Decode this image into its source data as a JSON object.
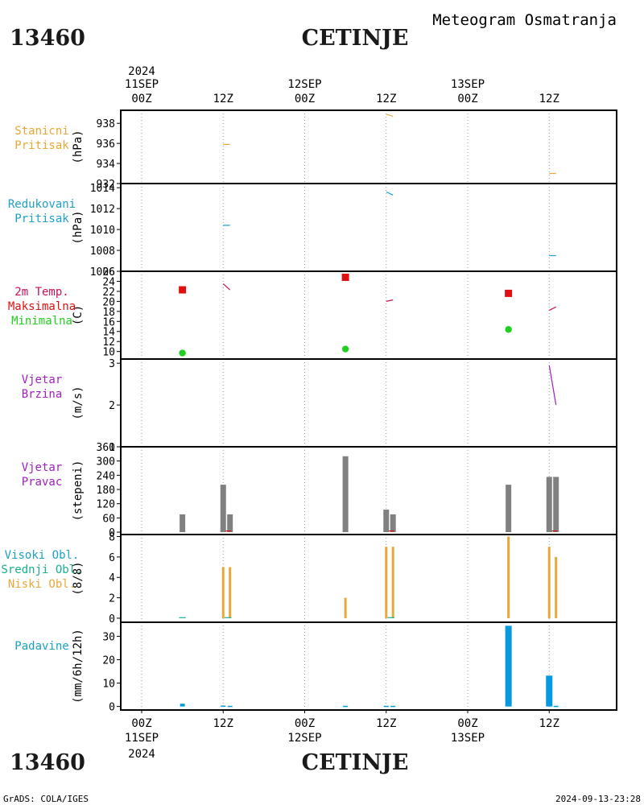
{
  "header": {
    "station_id": "13460",
    "station_name": "CETINJE",
    "product": "Meteogram Osmatranja"
  },
  "footer": {
    "station_id": "13460",
    "station_name": "CETINJE",
    "credit": "GrADS: COLA/IGES",
    "timestamp": "2024-09-13-23:28"
  },
  "time_axis": {
    "top_year": "2024",
    "ticks": [
      {
        "hour": 0,
        "label": "00Z",
        "date": "11SEP"
      },
      {
        "hour": 12,
        "label": "12Z",
        "date": ""
      },
      {
        "hour": 24,
        "label": "00Z",
        "date": "12SEP"
      },
      {
        "hour": 36,
        "label": "12Z",
        "date": ""
      },
      {
        "hour": 48,
        "label": "00Z",
        "date": "13SEP"
      },
      {
        "hour": 60,
        "label": "12Z",
        "date": ""
      }
    ],
    "bottom_year": "2024"
  },
  "colors": {
    "orange": "#e8a838",
    "cyan": "#1ea0c8",
    "crimson": "#c8105a",
    "red": "#e01010",
    "green": "#20d020",
    "purple": "#a020c0",
    "teal": "#18b090",
    "gray": "#808080",
    "blue": "#0898e0"
  },
  "chart_data": [
    {
      "id": "station-pressure",
      "type": "line",
      "labels": [
        {
          "text": "Stanicni",
          "color": "#e8a838"
        },
        {
          "text": "Pritisak",
          "color": "#e8a838"
        }
      ],
      "ylabel": "(hPa)",
      "ylim": [
        932,
        939.3
      ],
      "yticks": [
        932,
        934,
        936,
        938
      ],
      "series": [
        {
          "color": "#e8a838",
          "segments": [
            [
              [
                12,
                935.9
              ],
              [
                13,
                935.9
              ]
            ],
            [
              [
                36,
                938.9
              ],
              [
                37,
                938.7
              ]
            ],
            [
              [
                60,
                933.0
              ],
              [
                61,
                933.0
              ]
            ]
          ]
        }
      ]
    },
    {
      "id": "reduced-pressure",
      "type": "line",
      "labels": [
        {
          "text": "Redukovani",
          "color": "#1ea0c8"
        },
        {
          "text": "Pritisak",
          "color": "#1ea0c8"
        }
      ],
      "ylabel": "(hPa)",
      "ylim": [
        1006,
        1014.4
      ],
      "yticks": [
        1006,
        1008,
        1010,
        1012,
        1014
      ],
      "series": [
        {
          "color": "#1ea0c8",
          "segments": [
            [
              [
                12,
                1010.4
              ],
              [
                13,
                1010.4
              ]
            ],
            [
              [
                36,
                1013.6
              ],
              [
                37,
                1013.3
              ]
            ],
            [
              [
                60,
                1007.5
              ],
              [
                61,
                1007.5
              ]
            ]
          ]
        }
      ]
    },
    {
      "id": "temperature",
      "type": "scatter",
      "labels": [
        {
          "text": "2m Temp.",
          "color": "#c8105a"
        },
        {
          "text": "Maksimalna",
          "color": "#e01010"
        },
        {
          "text": "Minimalna",
          "color": "#20d020"
        }
      ],
      "ylabel": "(C)",
      "ylim": [
        8.5,
        26
      ],
      "yticks": [
        10,
        12,
        14,
        16,
        18,
        20,
        22,
        24,
        26
      ],
      "series": [
        {
          "color": "#c8105a",
          "segments": [
            [
              [
                12,
                23.5
              ],
              [
                13,
                22.3
              ]
            ],
            [
              [
                36,
                20.0
              ],
              [
                37,
                20.3
              ]
            ],
            [
              [
                60,
                18.2
              ],
              [
                61,
                18.9
              ]
            ]
          ]
        },
        {
          "color": "#e01010",
          "marker": "square",
          "points": [
            [
              6,
              22.3
            ],
            [
              30,
              24.8
            ],
            [
              54,
              21.6
            ]
          ]
        },
        {
          "color": "#20d020",
          "marker": "circle",
          "points": [
            [
              6,
              9.7
            ],
            [
              30,
              10.5
            ],
            [
              54,
              14.4
            ]
          ]
        }
      ]
    },
    {
      "id": "wind-speed",
      "type": "line",
      "labels": [
        {
          "text": "Vjetar",
          "color": "#a020c0"
        },
        {
          "text": "Brzina",
          "color": "#a020c0"
        }
      ],
      "ylabel": "(m/s)",
      "ylim": [
        1,
        3.1
      ],
      "yticks": [
        1,
        2,
        3
      ],
      "series": [
        {
          "color": "#a020c0",
          "segments": [
            [
              [
                12,
                1.0
              ],
              [
                13,
                1.0
              ]
            ],
            [
              [
                36,
                1.0
              ],
              [
                37,
                1.0
              ]
            ],
            [
              [
                60,
                2.95
              ],
              [
                61,
                2.0
              ]
            ]
          ]
        }
      ]
    },
    {
      "id": "wind-direction",
      "type": "bar",
      "labels": [
        {
          "text": "Vjetar",
          "color": "#a020c0"
        },
        {
          "text": "Pravac",
          "color": "#a020c0"
        }
      ],
      "ylabel": "(stepeni)",
      "ylim": [
        -10,
        360
      ],
      "yticks": [
        0,
        60,
        120,
        180,
        240,
        300,
        360
      ],
      "tick_labels": [
        "0",
        "60",
        "120",
        "180",
        "240",
        "300",
        "360"
      ],
      "bars": [
        {
          "x": 6,
          "value": 75,
          "color": "#808080"
        },
        {
          "x": 12,
          "value": 200,
          "color": "#808080"
        },
        {
          "x": 13,
          "value": 75,
          "color": "#808080"
        },
        {
          "x": 30,
          "value": 320,
          "color": "#808080"
        },
        {
          "x": 36,
          "value": 95,
          "color": "#808080"
        },
        {
          "x": 37,
          "value": 75,
          "color": "#808080"
        },
        {
          "x": 54,
          "value": 200,
          "color": "#808080"
        },
        {
          "x": 60,
          "value": 233,
          "color": "#808080"
        },
        {
          "x": 61,
          "value": 233,
          "color": "#808080"
        }
      ],
      "series": [
        {
          "color": "#e01010",
          "segments": [
            [
              [
                12.4,
                5
              ],
              [
                13.2,
                5
              ]
            ],
            [
              [
                36.4,
                5
              ],
              [
                37.2,
                5
              ]
            ],
            [
              [
                60.4,
                5
              ],
              [
                61.2,
                5
              ]
            ]
          ]
        }
      ]
    },
    {
      "id": "cloud-cover",
      "type": "bar",
      "labels": [
        {
          "text": "Visoki Obl.",
          "color": "#1ea0c8"
        },
        {
          "text": "Srednji Obl.",
          "color": "#18b090"
        },
        {
          "text": "Niski Obl.",
          "color": "#e8a838"
        }
      ],
      "ylabel": "(8/8)",
      "ylim": [
        -0.4,
        8.2
      ],
      "yticks": [
        0,
        2,
        4,
        6,
        8
      ],
      "bars": [
        {
          "x": 12,
          "value": 5,
          "color": "#e8a838"
        },
        {
          "x": 13,
          "value": 5,
          "color": "#e8a838"
        },
        {
          "x": 30,
          "value": 2,
          "color": "#e8a838"
        },
        {
          "x": 36,
          "value": 7,
          "color": "#e8a838"
        },
        {
          "x": 37,
          "value": 7,
          "color": "#e8a838"
        },
        {
          "x": 54,
          "value": 8,
          "color": "#e8a838"
        },
        {
          "x": 60,
          "value": 7,
          "color": "#e8a838"
        },
        {
          "x": 61,
          "value": 6,
          "color": "#e8a838"
        }
      ],
      "series": [
        {
          "color": "#18b090",
          "segments": [
            [
              [
                5.5,
                0.05
              ],
              [
                6.5,
                0.05
              ]
            ],
            [
              [
                12.2,
                0.05
              ],
              [
                13.2,
                0.05
              ]
            ],
            [
              [
                36.2,
                0.05
              ],
              [
                37.2,
                0.05
              ]
            ]
          ]
        }
      ]
    },
    {
      "id": "precipitation",
      "type": "bar",
      "labels": [
        {
          "text": "Padavine",
          "color": "#1ea0c8"
        }
      ],
      "ylabel": "(mm/6h/12h)",
      "ylim": [
        -1.5,
        36
      ],
      "yticks": [
        0,
        10,
        20,
        30
      ],
      "bars": [
        {
          "x": 6,
          "value": 1.2,
          "color": "#0898e0"
        },
        {
          "x": 12,
          "value": 0.4,
          "color": "#0898e0"
        },
        {
          "x": 13,
          "value": 0.3,
          "color": "#0898e0"
        },
        {
          "x": 30,
          "value": 0.3,
          "color": "#0898e0"
        },
        {
          "x": 36,
          "value": 0.3,
          "color": "#0898e0"
        },
        {
          "x": 37,
          "value": 0.3,
          "color": "#0898e0"
        },
        {
          "x": 54,
          "value": 34.5,
          "color": "#0898e0"
        },
        {
          "x": 60,
          "value": 13.2,
          "color": "#0898e0"
        },
        {
          "x": 61,
          "value": 0.3,
          "color": "#0898e0"
        }
      ]
    }
  ]
}
